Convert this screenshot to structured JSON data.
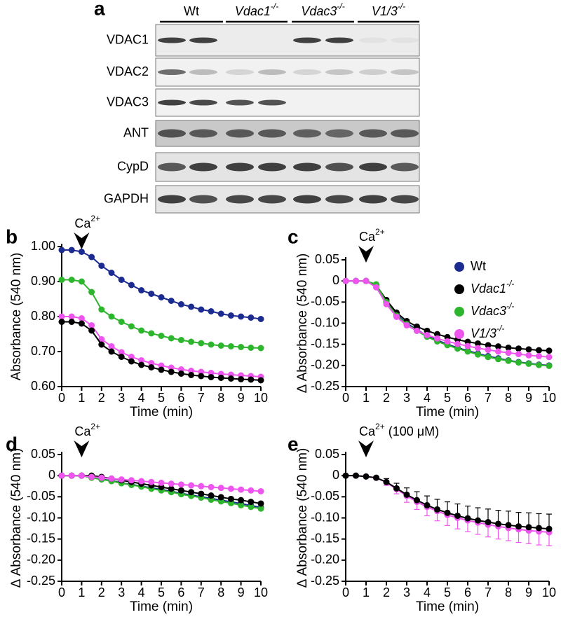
{
  "blot": {
    "panel": "a",
    "groups": [
      {
        "text": "Wt",
        "italic": false
      },
      {
        "text": "Vdac1",
        "sup": "-/-",
        "italic": true
      },
      {
        "text": "Vdac3",
        "sup": "-/-",
        "italic": true
      },
      {
        "text": "V1/3",
        "sup": "-/-",
        "italic": true
      }
    ],
    "rows": [
      "VDAC1",
      "VDAC2",
      "VDAC3",
      "ANT",
      "CypD",
      "GAPDH"
    ]
  },
  "chart_data": [
    {
      "type": "line",
      "panel": "b",
      "ylabel": "Absorbance (540 nm)",
      "xlabel": "Time (min)",
      "annotation": {
        "x": 1,
        "text": "Ca",
        "sup": "2+"
      },
      "xlim": [
        0,
        10
      ],
      "xticks": [
        0,
        1,
        2,
        3,
        4,
        5,
        6,
        7,
        8,
        9,
        10
      ],
      "ylim": [
        0.6,
        1.0
      ],
      "yticks": [
        {
          "value": 0.6,
          "label": "0.60"
        },
        {
          "value": 0.7,
          "label": "0.70"
        },
        {
          "value": 0.8,
          "label": "0.80"
        },
        {
          "value": 0.9,
          "label": "0.90"
        },
        {
          "value": 1.0,
          "label": "1.00"
        }
      ],
      "x": [
        0,
        0.5,
        1,
        1.5,
        2,
        2.5,
        3,
        3.5,
        4,
        4.5,
        5,
        5.5,
        6,
        6.5,
        7,
        7.5,
        8,
        8.5,
        9,
        9.5,
        10
      ],
      "series": [
        {
          "color": "#1c2b8f",
          "values": [
            0.99,
            0.99,
            0.985,
            0.97,
            0.945,
            0.925,
            0.905,
            0.89,
            0.875,
            0.865,
            0.855,
            0.845,
            0.835,
            0.828,
            0.82,
            0.815,
            0.808,
            0.803,
            0.8,
            0.797,
            0.793
          ]
        },
        {
          "color": "#2db52d",
          "values": [
            0.905,
            0.905,
            0.9,
            0.87,
            0.82,
            0.8,
            0.785,
            0.772,
            0.76,
            0.752,
            0.745,
            0.738,
            0.733,
            0.728,
            0.724,
            0.72,
            0.717,
            0.715,
            0.713,
            0.711,
            0.71
          ]
        },
        {
          "color": "#ee55ee",
          "values": [
            0.8,
            0.8,
            0.795,
            0.775,
            0.735,
            0.715,
            0.698,
            0.685,
            0.675,
            0.667,
            0.66,
            0.654,
            0.649,
            0.645,
            0.642,
            0.639,
            0.636,
            0.634,
            0.632,
            0.63,
            0.628
          ]
        },
        {
          "color": "#000000",
          "values": [
            0.785,
            0.785,
            0.78,
            0.76,
            0.72,
            0.7,
            0.685,
            0.672,
            0.662,
            0.655,
            0.648,
            0.642,
            0.637,
            0.633,
            0.63,
            0.627,
            0.625,
            0.623,
            0.621,
            0.62,
            0.618
          ]
        }
      ]
    },
    {
      "type": "line",
      "panel": "c",
      "ylabel": "Δ Absorbance (540 nm)",
      "xlabel": "Time (min)",
      "annotation": {
        "x": 1,
        "text": "Ca",
        "sup": "2+"
      },
      "xlim": [
        0,
        10
      ],
      "xticks": [
        0,
        1,
        2,
        3,
        4,
        5,
        6,
        7,
        8,
        9,
        10
      ],
      "ylim": [
        -0.25,
        0.05
      ],
      "yticks": [
        -0.25,
        {
          "value": -0.2,
          "label": "-0.20"
        },
        -0.15,
        {
          "value": -0.1,
          "label": "-0.10"
        },
        -0.05,
        0,
        0.05
      ],
      "legend": "upper right",
      "x": [
        0,
        0.5,
        1,
        1.5,
        2,
        2.5,
        3,
        3.5,
        4,
        4.5,
        5,
        5.5,
        6,
        6.5,
        7,
        7.5,
        8,
        8.5,
        9,
        9.5,
        10
      ],
      "series": [
        {
          "name": {
            "text": "Wt",
            "italic": false
          },
          "color": "#1c2b8f",
          "values": [
            0,
            0,
            0,
            -0.01,
            -0.05,
            -0.08,
            -0.1,
            -0.115,
            -0.13,
            -0.14,
            -0.15,
            -0.158,
            -0.165,
            -0.172,
            -0.178,
            -0.183,
            -0.188,
            -0.192,
            -0.195,
            -0.198,
            -0.2
          ]
        },
        {
          "name": {
            "text": "Vdac1",
            "sup": "-/-",
            "italic": true
          },
          "color": "#000000",
          "values": [
            0,
            0,
            0,
            -0.01,
            -0.045,
            -0.075,
            -0.095,
            -0.108,
            -0.118,
            -0.126,
            -0.133,
            -0.139,
            -0.144,
            -0.148,
            -0.152,
            -0.155,
            -0.158,
            -0.16,
            -0.162,
            -0.164,
            -0.165
          ]
        },
        {
          "name": {
            "text": "Vdac3",
            "sup": "-/-",
            "italic": true
          },
          "color": "#2db52d",
          "values": [
            0,
            0,
            0,
            -0.008,
            -0.05,
            -0.082,
            -0.102,
            -0.118,
            -0.132,
            -0.143,
            -0.152,
            -0.16,
            -0.167,
            -0.174,
            -0.18,
            -0.185,
            -0.189,
            -0.193,
            -0.196,
            -0.199,
            -0.201
          ]
        },
        {
          "name": {
            "text": "V1/3",
            "sup": "-/-",
            "italic": true
          },
          "color": "#ee55ee",
          "values": [
            0,
            0,
            0,
            -0.015,
            -0.055,
            -0.085,
            -0.105,
            -0.118,
            -0.128,
            -0.136,
            -0.143,
            -0.149,
            -0.154,
            -0.159,
            -0.163,
            -0.167,
            -0.17,
            -0.173,
            -0.176,
            -0.178,
            -0.18
          ]
        }
      ]
    },
    {
      "type": "line",
      "panel": "d",
      "ylabel": "Δ Absorbance (540 nm)",
      "xlabel": "Time (min)",
      "annotation": {
        "x": 1,
        "text": "Ca",
        "sup": "2+"
      },
      "xlim": [
        0,
        10
      ],
      "xticks": [
        0,
        1,
        2,
        3,
        4,
        5,
        6,
        7,
        8,
        9,
        10
      ],
      "ylim": [
        -0.25,
        0.05
      ],
      "yticks": [
        -0.25,
        {
          "value": -0.2,
          "label": "-0.20"
        },
        -0.15,
        {
          "value": -0.1,
          "label": "-0.10"
        },
        -0.05,
        0,
        0.05
      ],
      "x": [
        0,
        0.5,
        1,
        1.5,
        2,
        2.5,
        3,
        3.5,
        4,
        4.5,
        5,
        5.5,
        6,
        6.5,
        7,
        7.5,
        8,
        8.5,
        9,
        9.5,
        10
      ],
      "series": [
        {
          "color": "#1c2b8f",
          "values": [
            0,
            0,
            0,
            -0.004,
            -0.008,
            -0.012,
            -0.017,
            -0.021,
            -0.025,
            -0.029,
            -0.033,
            -0.037,
            -0.042,
            -0.046,
            -0.05,
            -0.054,
            -0.058,
            -0.062,
            -0.066,
            -0.071,
            -0.075
          ]
        },
        {
          "color": "#2db52d",
          "values": [
            0,
            0,
            0,
            -0.005,
            -0.009,
            -0.013,
            -0.018,
            -0.022,
            -0.026,
            -0.031,
            -0.035,
            -0.039,
            -0.044,
            -0.048,
            -0.052,
            -0.057,
            -0.061,
            -0.065,
            -0.07,
            -0.074,
            -0.078
          ]
        },
        {
          "color": "#000000",
          "values": [
            0,
            0,
            0,
            0,
            -0.003,
            -0.007,
            -0.011,
            -0.015,
            -0.019,
            -0.023,
            -0.027,
            -0.031,
            -0.035,
            -0.039,
            -0.043,
            -0.047,
            -0.051,
            -0.055,
            -0.058,
            -0.062,
            -0.066
          ]
        },
        {
          "color": "#ee55ee",
          "values": [
            0,
            0,
            0,
            -0.003,
            -0.005,
            -0.007,
            -0.009,
            -0.011,
            -0.013,
            -0.015,
            -0.017,
            -0.019,
            -0.021,
            -0.023,
            -0.025,
            -0.027,
            -0.029,
            -0.031,
            -0.033,
            -0.035,
            -0.037
          ]
        }
      ]
    },
    {
      "type": "line",
      "panel": "e",
      "ylabel": "Δ Absorbance (540 nm)",
      "xlabel": "Time (min)",
      "annotation": {
        "x": 1,
        "text": "Ca",
        "sup": "2+",
        "suffix": " (100 μM)"
      },
      "xlim": [
        0,
        10
      ],
      "xticks": [
        0,
        1,
        2,
        3,
        4,
        5,
        6,
        7,
        8,
        9,
        10
      ],
      "ylim": [
        -0.25,
        0.05
      ],
      "yticks": [
        -0.25,
        {
          "value": -0.2,
          "label": "-0.20"
        },
        -0.15,
        {
          "value": -0.1,
          "label": "-0.10"
        },
        -0.05,
        0,
        0.05
      ],
      "x": [
        0,
        0.5,
        1,
        1.5,
        2,
        2.5,
        3,
        3.5,
        4,
        4.5,
        5,
        5.5,
        6,
        6.5,
        7,
        7.5,
        8,
        8.5,
        9,
        9.5,
        10
      ],
      "series": [
        {
          "color": "#ee55ee",
          "error_side": "down",
          "values": [
            0,
            0,
            -0.002,
            -0.005,
            -0.016,
            -0.032,
            -0.048,
            -0.062,
            -0.074,
            -0.084,
            -0.093,
            -0.1,
            -0.106,
            -0.111,
            -0.116,
            -0.12,
            -0.124,
            -0.127,
            -0.13,
            -0.132,
            -0.134
          ],
          "errors": [
            0,
            0,
            0,
            0.003,
            0.007,
            0.011,
            0.015,
            0.018,
            0.021,
            0.023,
            0.025,
            0.026,
            0.027,
            0.028,
            0.029,
            0.03,
            0.03,
            0.031,
            0.031,
            0.032,
            0.032
          ]
        },
        {
          "color": "#000000",
          "error_side": "up",
          "values": [
            0,
            0,
            -0.002,
            -0.005,
            -0.015,
            -0.03,
            -0.045,
            -0.058,
            -0.07,
            -0.08,
            -0.088,
            -0.095,
            -0.101,
            -0.106,
            -0.11,
            -0.114,
            -0.117,
            -0.12,
            -0.122,
            -0.124,
            -0.126
          ],
          "errors": [
            0,
            0,
            0,
            0.003,
            0.008,
            0.012,
            0.016,
            0.02,
            0.022,
            0.024,
            0.026,
            0.028,
            0.029,
            0.03,
            0.031,
            0.032,
            0.033,
            0.033,
            0.034,
            0.034,
            0.035
          ]
        }
      ]
    }
  ]
}
